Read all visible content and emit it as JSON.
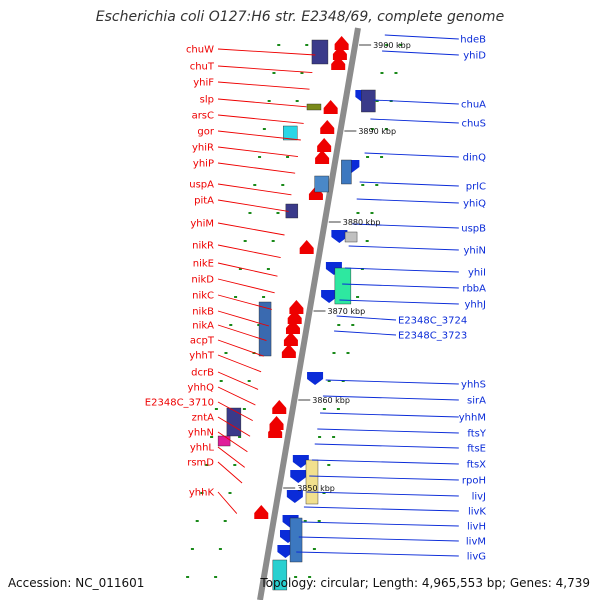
{
  "title": "Escherichia coli O127:H6 str. E2348/69, complete genome",
  "footer": {
    "accession": "Accession: NC_011601",
    "topology": "Topology: circular; Length: 4,965,553 bp; Genes: 4,739"
  },
  "colors": {
    "minus_strand": "#ee0000",
    "plus_strand": "#0a2bd8",
    "backbone": "#8c8c8c",
    "tick": "#1a8a1a"
  },
  "kbp_markers": [
    "3900 kbp",
    "3890 kbp",
    "3880 kbp",
    "3870 kbp",
    "3860 kbp",
    "3850 kbp"
  ],
  "left_genes": [
    "chuW",
    "chuT",
    "yhiF",
    "slp",
    "arsC",
    "gor",
    "yhiR",
    "yhiP",
    "uspA",
    "pitA",
    "yhiM",
    "nikR",
    "nikE",
    "nikD",
    "nikC",
    "nikB",
    "nikA",
    "acpT",
    "yhhT",
    "dcrB",
    "yhhQ",
    "E2348C_3710",
    "zntA",
    "yhhN",
    "yhhL",
    "rsmD",
    "yhhK"
  ],
  "right_genes": [
    "hdeB",
    "yhiD",
    "chuA",
    "chuS",
    "dinQ",
    "prlC",
    "yhiQ",
    "uspB",
    "yhiN",
    "yhiI",
    "rbbA",
    "yhhJ",
    "E2348C_3724",
    "E2348C_3723",
    "yhhS",
    "sirA",
    "yhhM",
    "ftsY",
    "ftsE",
    "ftsX",
    "rpoH",
    "livJ",
    "livK",
    "livH",
    "livM",
    "livG"
  ]
}
